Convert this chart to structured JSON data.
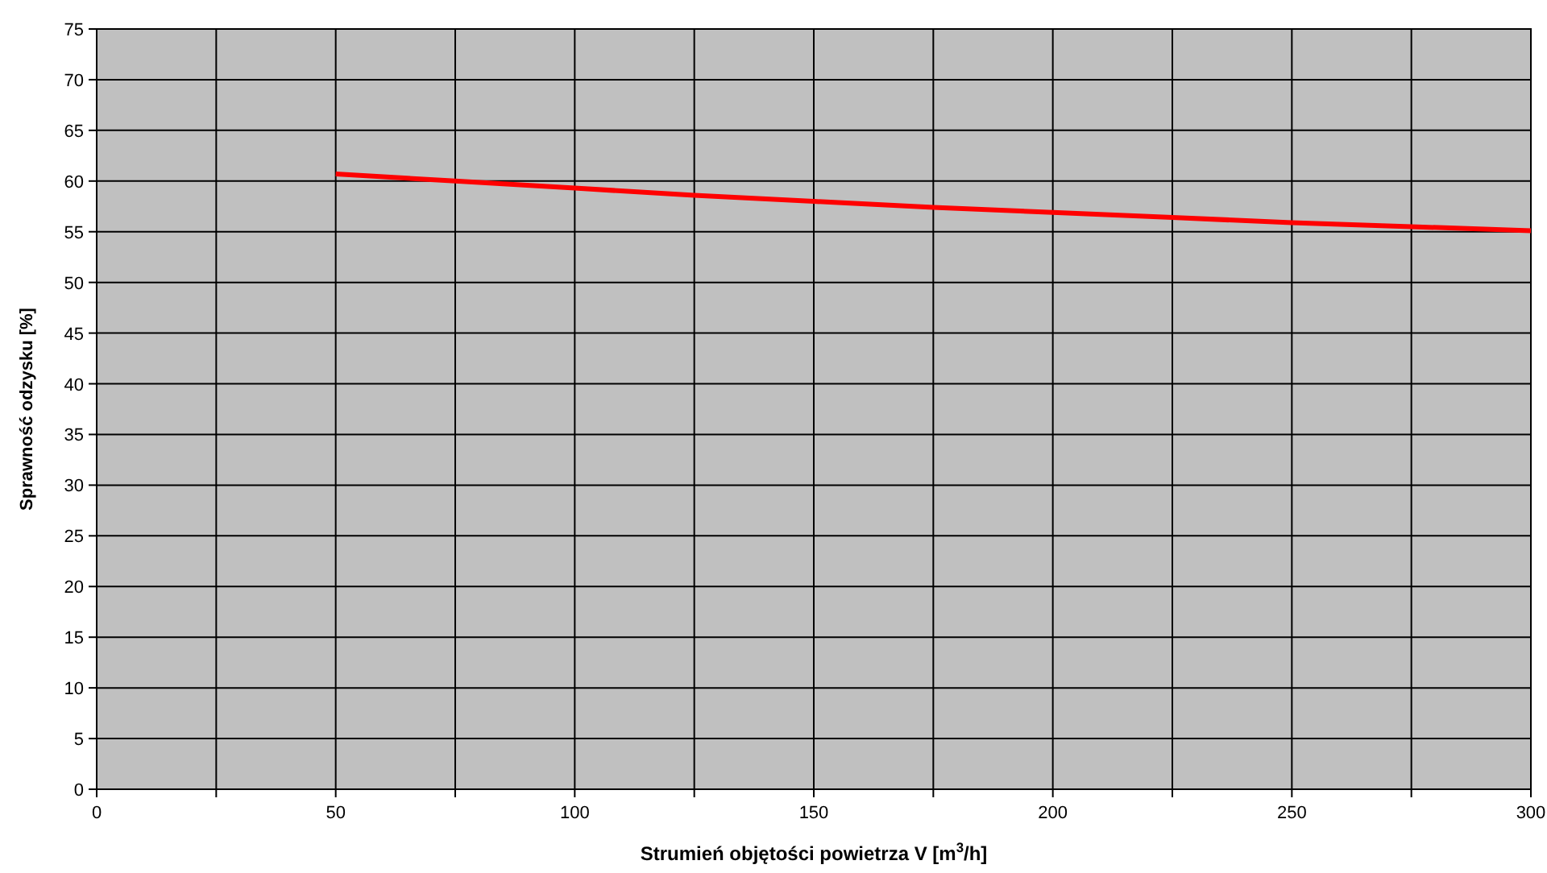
{
  "chart_data": {
    "type": "line",
    "xlabel": "Strumień objętości powietrza V [m$^{3}$/h]",
    "ylabel": "Sprawność odzysku [%]",
    "x": [
      50,
      75,
      100,
      125,
      150,
      175,
      200,
      225,
      250,
      275,
      300
    ],
    "series": [
      {
        "color": "#ff0000",
        "values": [
          60.7,
          60.0,
          59.3,
          58.6,
          58.0,
          57.4,
          56.9,
          56.4,
          55.9,
          55.5,
          55.1
        ]
      }
    ],
    "xlim": [
      0,
      300
    ],
    "ylim": [
      0,
      75
    ],
    "xticks": [
      0,
      {
        "value": 25,
        "label": null
      },
      50,
      {
        "value": 75,
        "label": null
      },
      100,
      {
        "value": 125,
        "label": null
      },
      150,
      {
        "value": 175,
        "label": null
      },
      200,
      {
        "value": 225,
        "label": null
      },
      250,
      {
        "value": 275,
        "label": null
      },
      300
    ],
    "yticks": [
      0,
      5,
      10,
      15,
      20,
      25,
      30,
      35,
      40,
      45,
      50,
      55,
      60,
      65,
      70,
      75
    ],
    "grid": true,
    "marker": "none",
    "line_style": "solid"
  }
}
